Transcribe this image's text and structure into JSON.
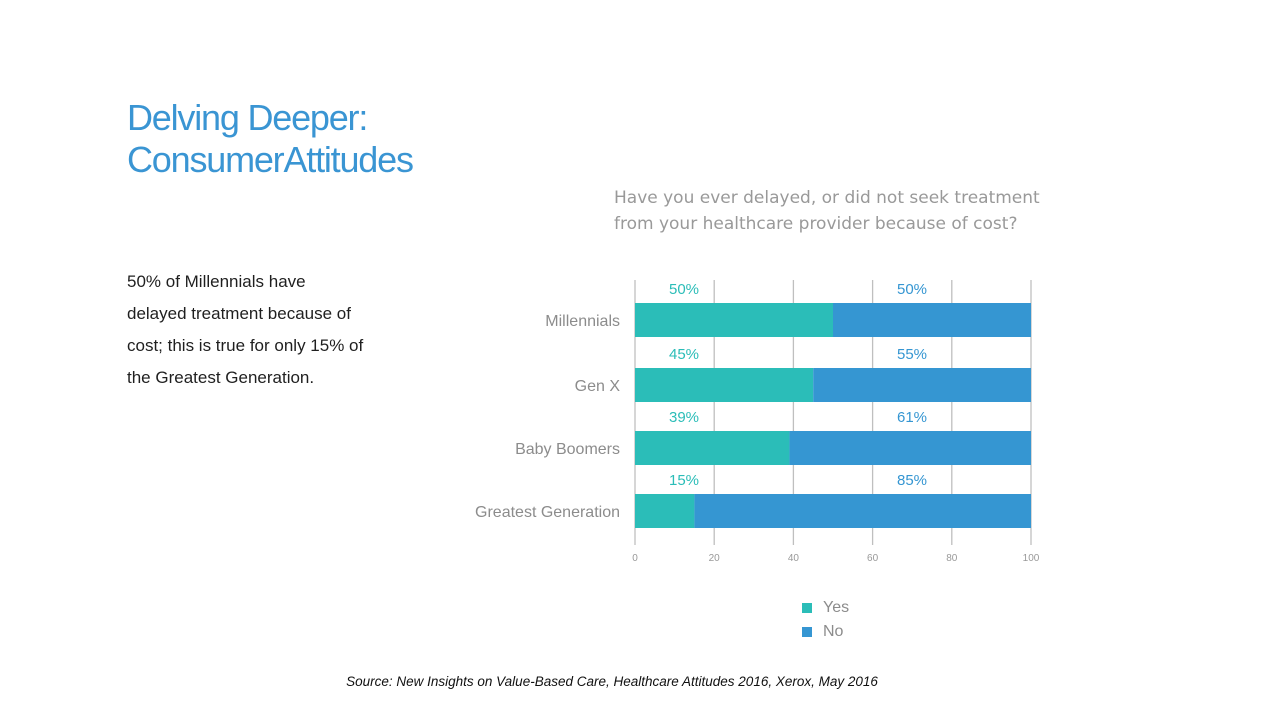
{
  "slide": {
    "title_lines": [
      "Delving Deeper:",
      "ConsumerAttitudes"
    ],
    "body_text": "50% of Millennials  have delayed  treatment because of cost; this is true for only 15% of the Greatest Generation.",
    "source": "Source: New Insights on Value-Based Care, Healthcare Attitudes 2016, Xerox, May 2016"
  },
  "chart_data": {
    "type": "bar",
    "orientation": "horizontal",
    "stacked": true,
    "title": "Have you ever delayed, or did not seek treatment from your healthcare provider because of cost?",
    "categories": [
      "Millennials",
      "Gen X",
      "Baby Boomers",
      "Greatest Generation"
    ],
    "series": [
      {
        "name": "Yes",
        "values": [
          50,
          45,
          39,
          15
        ],
        "labels": [
          "50%",
          "45%",
          "39%",
          "15%"
        ],
        "color": "#2bbdb8"
      },
      {
        "name": "No",
        "values": [
          50,
          55,
          61,
          85
        ],
        "labels": [
          "50%",
          "55%",
          "61%",
          "85%"
        ],
        "color": "#3596d2"
      }
    ],
    "xlim": [
      0,
      100
    ],
    "xticks": [
      0,
      20,
      40,
      60,
      80,
      100
    ],
    "xlabel": "",
    "ylabel": "",
    "grid": true,
    "legend": "bottom"
  },
  "colors": {
    "title": "#3a95d3",
    "yes_label": "#2bbdb8",
    "no_label": "#3596d2",
    "category_label": "#8c8c8c",
    "grid": "#bfbfbf"
  }
}
